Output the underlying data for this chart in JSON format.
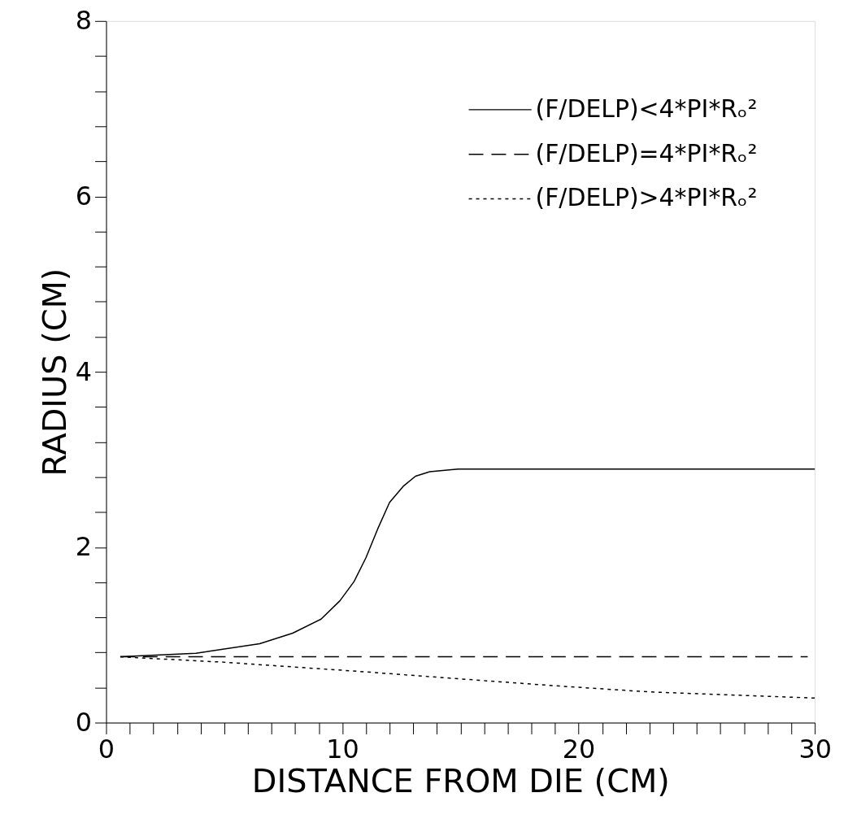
{
  "chart_data": {
    "type": "line",
    "xlabel": "DISTANCE FROM DIE (CM)",
    "ylabel": "RADIUS (CM)",
    "xlim": [
      0,
      30
    ],
    "ylim": [
      0,
      8
    ],
    "xticks": [
      0,
      {
        "value": 1,
        "label": null
      },
      {
        "value": 2,
        "label": null
      },
      {
        "value": 3,
        "label": null
      },
      {
        "value": 4,
        "label": null
      },
      {
        "value": 5,
        "label": null
      },
      {
        "value": 6,
        "label": null
      },
      {
        "value": 7,
        "label": null
      },
      {
        "value": 8,
        "label": null
      },
      {
        "value": 9,
        "label": null
      },
      10,
      {
        "value": 11,
        "label": null
      },
      {
        "value": 12,
        "label": null
      },
      {
        "value": 13,
        "label": null
      },
      {
        "value": 14,
        "label": null
      },
      {
        "value": 15,
        "label": null
      },
      {
        "value": 16,
        "label": null
      },
      {
        "value": 17,
        "label": null
      },
      {
        "value": 18,
        "label": null
      },
      {
        "value": 19,
        "label": null
      },
      20,
      {
        "value": 21,
        "label": null
      },
      {
        "value": 22,
        "label": null
      },
      {
        "value": 23,
        "label": null
      },
      {
        "value": 24,
        "label": null
      },
      {
        "value": 25,
        "label": null
      },
      {
        "value": 26,
        "label": null
      },
      {
        "value": 27,
        "label": null
      },
      {
        "value": 28,
        "label": null
      },
      {
        "value": 29,
        "label": null
      },
      30
    ],
    "yticks": [
      0,
      {
        "value": 0.4,
        "label": null
      },
      {
        "value": 0.8,
        "label": null
      },
      {
        "value": 1.2,
        "label": null
      },
      {
        "value": 1.6,
        "label": null
      },
      2,
      {
        "value": 2.4,
        "label": null
      },
      {
        "value": 2.8,
        "label": null
      },
      {
        "value": 3.2,
        "label": null
      },
      {
        "value": 3.6,
        "label": null
      },
      4,
      {
        "value": 4.4,
        "label": null
      },
      {
        "value": 4.8,
        "label": null
      },
      {
        "value": 5.2,
        "label": null
      },
      {
        "value": 5.6,
        "label": null
      },
      6,
      {
        "value": 6.4,
        "label": null
      },
      {
        "value": 6.8,
        "label": null
      },
      {
        "value": 7.2,
        "label": null
      },
      {
        "value": 7.6,
        "label": null
      },
      8
    ],
    "grid": false,
    "legend": "top right",
    "marker": "none",
    "series": [
      {
        "name": "(F/DELP)<4*PI*Rₒ²",
        "color": "#000000",
        "line_style": "solid",
        "x": [
          0.6,
          3.8,
          6.5,
          7.9,
          9.1,
          9.9,
          10.5,
          11.0,
          11.5,
          12.0,
          12.6,
          13.1,
          13.7,
          14.9,
          30
        ],
        "values": [
          0.75,
          0.79,
          0.9,
          1.02,
          1.18,
          1.39,
          1.61,
          1.88,
          2.21,
          2.51,
          2.7,
          2.81,
          2.86,
          2.89,
          2.89
        ]
      },
      {
        "name": "(F/DELP)=4*PI*Rₒ²",
        "color": "#000000",
        "line_style": "dashed",
        "x": [
          0.6,
          29.7
        ],
        "values": [
          0.75,
          0.75
        ]
      },
      {
        "name": "(F/DELP)>4*PI*Rₒ²",
        "color": "#000000",
        "line_style": "dotted",
        "x": [
          0.6,
          4.9,
          10.9,
          14.9,
          19.0,
          23.0,
          30
        ],
        "values": [
          0.75,
          0.69,
          0.58,
          0.5,
          0.42,
          0.35,
          0.28
        ]
      }
    ]
  }
}
